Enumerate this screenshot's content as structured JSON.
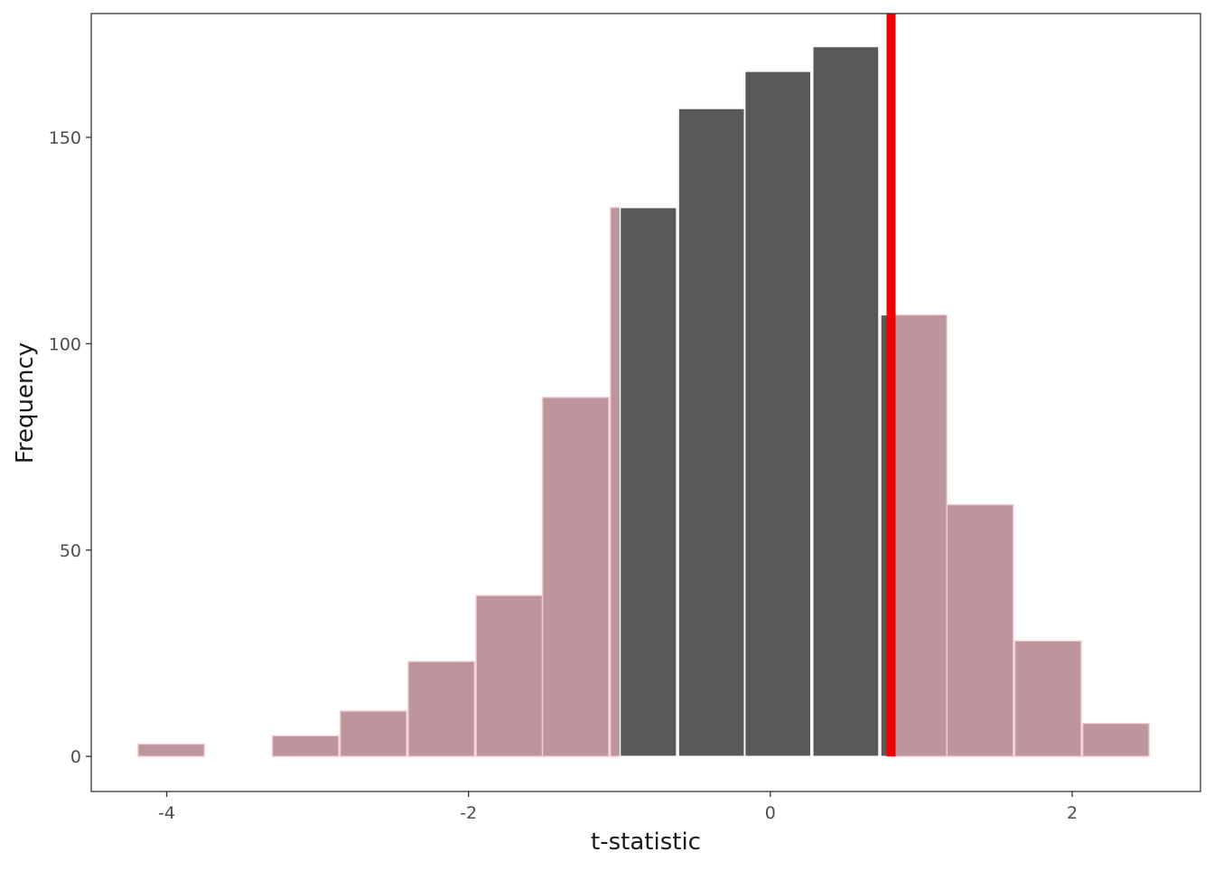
{
  "chart_data": {
    "type": "bar",
    "subtype": "histogram",
    "title": "",
    "xlabel": "t-statistic",
    "ylabel": "Frequency",
    "xlim": [
      -4.5,
      2.85
    ],
    "ylim": [
      -8.5,
      180
    ],
    "x_ticks": [
      -4,
      -2,
      0,
      2
    ],
    "x_tick_labels": [
      "-4",
      "-2",
      "0",
      "2"
    ],
    "y_ticks": [
      0,
      50,
      100,
      150
    ],
    "y_tick_labels": [
      "0",
      "50",
      "100",
      "150"
    ],
    "bin_width": 0.447,
    "bins": [
      {
        "center": -3.97,
        "count": 3
      },
      {
        "center": -3.52,
        "count": 0
      },
      {
        "center": -3.08,
        "count": 5
      },
      {
        "center": -2.63,
        "count": 11
      },
      {
        "center": -2.18,
        "count": 23
      },
      {
        "center": -1.73,
        "count": 39
      },
      {
        "center": -1.29,
        "count": 87
      },
      {
        "center": -0.84,
        "count": 133
      },
      {
        "center": -0.39,
        "count": 157
      },
      {
        "center": 0.05,
        "count": 166
      },
      {
        "center": 0.5,
        "count": 172
      },
      {
        "center": 0.95,
        "count": 107
      },
      {
        "center": 1.39,
        "count": 61
      },
      {
        "center": 1.84,
        "count": 28
      },
      {
        "center": 2.29,
        "count": 8
      }
    ],
    "shade_interval": [
      -1.0,
      0.8
    ],
    "observed_statistic": 0.8,
    "colors": {
      "inside_fill": "#595959",
      "inside_stroke": "#ffffff",
      "outside_fill": "#bc969c",
      "outside_stroke": "#f7cdd3",
      "observed_line": "#ee0000",
      "panel_border": "#333333",
      "tick_label": "#4d4d4d",
      "axis_title": "#1a1a1a"
    },
    "grid": false,
    "legend": "none"
  }
}
